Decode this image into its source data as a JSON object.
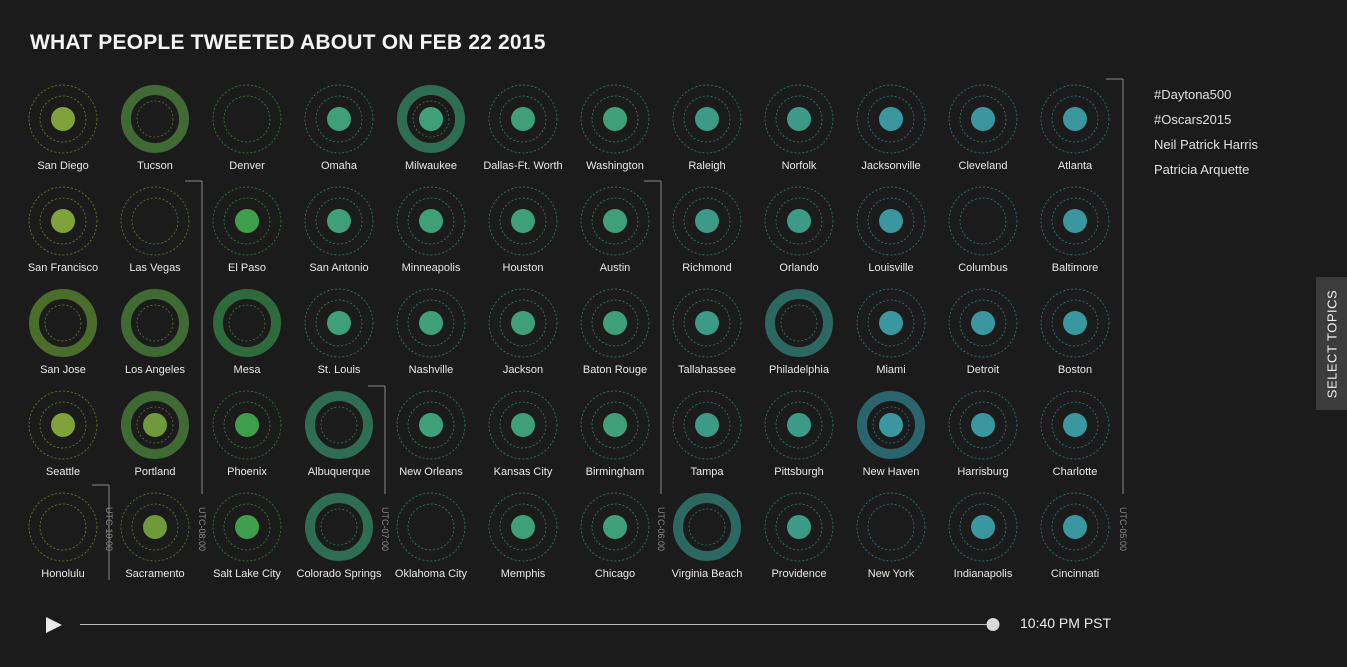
{
  "title": "WHAT PEOPLE TWEETED ABOUT ON FEB 22 2015",
  "topics": [
    "#Daytona500",
    "#Oscars2015",
    "Neil Patrick Harris",
    "Patricia Arquette"
  ],
  "select_topics_label": "SELECT TOPICS",
  "time_label": "10:40 PM PST",
  "timeline_progress": 1.0,
  "colors": {
    "background": "#1b1b1b",
    "palette": [
      "#7fa33a",
      "#6e9a3c",
      "#3f9e4a",
      "#3f9f78",
      "#3c9a86",
      "#3a97a0"
    ],
    "ring": [
      "#4b6d2b",
      "#3f6a33",
      "#2f6a3c",
      "#2e6c54",
      "#2c6860",
      "#2b646c"
    ]
  },
  "chart_data": {
    "type": "bubble-grid",
    "title": "WHAT PEOPLE TWEETED ABOUT ON FEB 22 2015",
    "legend": "top-right",
    "cells": [
      {
        "city": "San Diego",
        "col": 0,
        "row": 0,
        "shape": "dot"
      },
      {
        "city": "Tucson",
        "col": 1,
        "row": 0,
        "shape": "ring"
      },
      {
        "city": "Denver",
        "col": 2,
        "row": 0,
        "shape": "empty"
      },
      {
        "city": "Omaha",
        "col": 3,
        "row": 0,
        "shape": "dot"
      },
      {
        "city": "Milwaukee",
        "col": 4,
        "row": 0,
        "shape": "ringdot"
      },
      {
        "city": "Dallas-Ft. Worth",
        "col": 5,
        "row": 0,
        "shape": "dot"
      },
      {
        "city": "Washington",
        "col": 6,
        "row": 0,
        "shape": "dot"
      },
      {
        "city": "Raleigh",
        "col": 7,
        "row": 0,
        "shape": "dot"
      },
      {
        "city": "Norfolk",
        "col": 8,
        "row": 0,
        "shape": "dot"
      },
      {
        "city": "Jacksonville",
        "col": 9,
        "row": 0,
        "shape": "dot"
      },
      {
        "city": "Cleveland",
        "col": 10,
        "row": 0,
        "shape": "dot"
      },
      {
        "city": "Atlanta",
        "col": 11,
        "row": 0,
        "shape": "dot"
      },
      {
        "city": "San Francisco",
        "col": 0,
        "row": 1,
        "shape": "dot"
      },
      {
        "city": "Las Vegas",
        "col": 1,
        "row": 1,
        "shape": "empty"
      },
      {
        "city": "El Paso",
        "col": 2,
        "row": 1,
        "shape": "dot"
      },
      {
        "city": "San Antonio",
        "col": 3,
        "row": 1,
        "shape": "dot"
      },
      {
        "city": "Minneapolis",
        "col": 4,
        "row": 1,
        "shape": "dot"
      },
      {
        "city": "Houston",
        "col": 5,
        "row": 1,
        "shape": "dot"
      },
      {
        "city": "Austin",
        "col": 6,
        "row": 1,
        "shape": "dot"
      },
      {
        "city": "Richmond",
        "col": 7,
        "row": 1,
        "shape": "dot"
      },
      {
        "city": "Orlando",
        "col": 8,
        "row": 1,
        "shape": "dot"
      },
      {
        "city": "Louisville",
        "col": 9,
        "row": 1,
        "shape": "dot"
      },
      {
        "city": "Columbus",
        "col": 10,
        "row": 1,
        "shape": "empty"
      },
      {
        "city": "Baltimore",
        "col": 11,
        "row": 1,
        "shape": "dot"
      },
      {
        "city": "San Jose",
        "col": 0,
        "row": 2,
        "shape": "ring"
      },
      {
        "city": "Los Angeles",
        "col": 1,
        "row": 2,
        "shape": "ring"
      },
      {
        "city": "Mesa",
        "col": 2,
        "row": 2,
        "shape": "ring"
      },
      {
        "city": "St. Louis",
        "col": 3,
        "row": 2,
        "shape": "dot"
      },
      {
        "city": "Nashville",
        "col": 4,
        "row": 2,
        "shape": "dot"
      },
      {
        "city": "Jackson",
        "col": 5,
        "row": 2,
        "shape": "dot"
      },
      {
        "city": "Baton Rouge",
        "col": 6,
        "row": 2,
        "shape": "dot"
      },
      {
        "city": "Tallahassee",
        "col": 7,
        "row": 2,
        "shape": "dot"
      },
      {
        "city": "Philadelphia",
        "col": 8,
        "row": 2,
        "shape": "ring"
      },
      {
        "city": "Miami",
        "col": 9,
        "row": 2,
        "shape": "dot"
      },
      {
        "city": "Detroit",
        "col": 10,
        "row": 2,
        "shape": "dot"
      },
      {
        "city": "Boston",
        "col": 11,
        "row": 2,
        "shape": "dot"
      },
      {
        "city": "Seattle",
        "col": 0,
        "row": 3,
        "shape": "dot"
      },
      {
        "city": "Portland",
        "col": 1,
        "row": 3,
        "shape": "ringdot"
      },
      {
        "city": "Phoenix",
        "col": 2,
        "row": 3,
        "shape": "dot"
      },
      {
        "city": "Albuquerque",
        "col": 3,
        "row": 3,
        "shape": "ring"
      },
      {
        "city": "New Orleans",
        "col": 4,
        "row": 3,
        "shape": "dot"
      },
      {
        "city": "Kansas City",
        "col": 5,
        "row": 3,
        "shape": "dot"
      },
      {
        "city": "Birmingham",
        "col": 6,
        "row": 3,
        "shape": "dot"
      },
      {
        "city": "Tampa",
        "col": 7,
        "row": 3,
        "shape": "dot"
      },
      {
        "city": "Pittsburgh",
        "col": 8,
        "row": 3,
        "shape": "dot"
      },
      {
        "city": "New Haven",
        "col": 9,
        "row": 3,
        "shape": "ringdot"
      },
      {
        "city": "Harrisburg",
        "col": 10,
        "row": 3,
        "shape": "dot"
      },
      {
        "city": "Charlotte",
        "col": 11,
        "row": 3,
        "shape": "dot"
      },
      {
        "city": "Honolulu",
        "col": 0,
        "row": 4,
        "shape": "empty"
      },
      {
        "city": "Sacramento",
        "col": 1,
        "row": 4,
        "shape": "dot"
      },
      {
        "city": "Salt Lake City",
        "col": 2,
        "row": 4,
        "shape": "dot"
      },
      {
        "city": "Colorado Springs",
        "col": 3,
        "row": 4,
        "shape": "ring"
      },
      {
        "city": "Oklahoma City",
        "col": 4,
        "row": 4,
        "shape": "empty"
      },
      {
        "city": "Memphis",
        "col": 5,
        "row": 4,
        "shape": "dot"
      },
      {
        "city": "Chicago",
        "col": 6,
        "row": 4,
        "shape": "dot"
      },
      {
        "city": "Virginia Beach",
        "col": 7,
        "row": 4,
        "shape": "ring"
      },
      {
        "city": "Providence",
        "col": 8,
        "row": 4,
        "shape": "dot"
      },
      {
        "city": "New York",
        "col": 9,
        "row": 4,
        "shape": "empty"
      },
      {
        "city": "Indianapolis",
        "col": 10,
        "row": 4,
        "shape": "dot"
      },
      {
        "city": "Cincinnati",
        "col": 11,
        "row": 4,
        "shape": "dot"
      }
    ],
    "time_zones": [
      {
        "label": "UTC-10:00",
        "boundary": "after col 0 row 4"
      },
      {
        "label": "UTC-08:00",
        "boundary": "after col 1 rows 1-4"
      },
      {
        "label": "UTC-07:00",
        "boundary": "after col 3 rows 3-4"
      },
      {
        "label": "UTC-06:00",
        "boundary": "after col 6 rows 0-4"
      },
      {
        "label": "UTC-05:00",
        "boundary": "after col 11 rows 0-4"
      }
    ]
  }
}
